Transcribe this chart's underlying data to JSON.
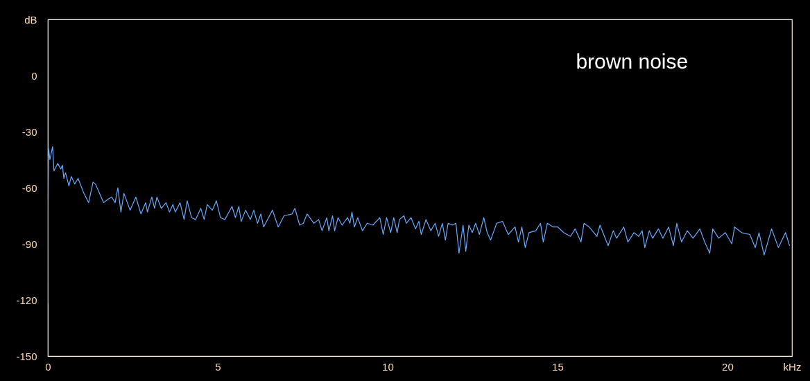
{
  "chart_data": {
    "type": "line",
    "x": [
      0,
      0.01,
      0.02,
      0.06,
      0.14,
      0.18,
      0.29,
      0.38,
      0.43,
      0.47,
      0.52,
      0.62,
      0.69,
      0.79,
      0.89,
      1.06,
      1.2,
      1.33,
      1.4,
      1.64,
      1.78,
      1.88,
      1.98,
      2.06,
      2.15,
      2.24,
      2.42,
      2.59,
      2.74,
      2.88,
      2.93,
      3.06,
      3.14,
      3.21,
      3.34,
      3.48,
      3.58,
      3.68,
      3.75,
      3.89,
      4.01,
      4.1,
      4.23,
      4.35,
      4.5,
      4.6,
      4.69,
      4.84,
      4.96,
      5.08,
      5.21,
      5.42,
      5.52,
      5.62,
      5.69,
      5.82,
      5.96,
      6.06,
      6.17,
      6.27,
      6.35,
      6.61,
      6.78,
      6.95,
      7.19,
      7.27,
      7.41,
      7.52,
      7.63,
      7.83,
      7.97,
      8.07,
      8.21,
      8.27,
      8.38,
      8.44,
      8.54,
      8.66,
      8.82,
      8.89,
      8.95,
      9.02,
      9.12,
      9.26,
      9.4,
      9.57,
      9.77,
      9.87,
      9.97,
      10.09,
      10.18,
      10.28,
      10.35,
      10.48,
      10.55,
      10.69,
      10.82,
      10.92,
      10.99,
      11.13,
      11.27,
      11.4,
      11.5,
      11.61,
      11.7,
      11.78,
      11.91,
      12.01,
      12.1,
      12.22,
      12.3,
      12.39,
      12.49,
      12.59,
      12.7,
      12.83,
      12.93,
      13.03,
      13.21,
      13.38,
      13.55,
      13.75,
      13.85,
      13.95,
      14.05,
      14.16,
      14.36,
      14.5,
      14.58,
      14.7,
      14.87,
      15.01,
      15.18,
      15.38,
      15.52,
      15.69,
      15.78,
      15.93,
      16.16,
      16.25,
      16.49,
      16.64,
      16.74,
      16.95,
      17.07,
      17.25,
      17.39,
      17.49,
      17.57,
      17.7,
      17.8,
      17.97,
      18.1,
      18.27,
      18.41,
      18.51,
      18.65,
      18.82,
      18.99,
      19.19,
      19.33,
      19.48,
      19.57,
      19.74,
      19.94,
      20.13,
      20.21,
      20.42,
      20.66,
      20.82,
      20.93,
      21.08,
      21.3,
      21.5,
      21.71,
      21.83
    ],
    "series": [
      {
        "color": "#6aaaff",
        "values": [
          -122,
          -67,
          -39,
          -45,
          -38,
          -51,
          -47,
          -50,
          -48,
          -55,
          -52,
          -59,
          -54,
          -58,
          -55,
          -63,
          -68,
          -57,
          -58,
          -68,
          -66,
          -65,
          -68,
          -60,
          -73,
          -63,
          -72,
          -65,
          -74,
          -68,
          -73,
          -65,
          -71,
          -65,
          -71,
          -68,
          -73,
          -69,
          -73,
          -68,
          -77,
          -67,
          -76,
          -77,
          -71,
          -77,
          -69,
          -72,
          -67,
          -76,
          -77,
          -70,
          -76,
          -70,
          -78,
          -72,
          -77,
          -72,
          -79,
          -74,
          -81,
          -72,
          -81,
          -75,
          -74,
          -71,
          -80,
          -79,
          -74,
          -79,
          -77,
          -83,
          -76,
          -83,
          -75,
          -83,
          -76,
          -80,
          -76,
          -79,
          -73,
          -81,
          -76,
          -83,
          -79,
          -80,
          -76,
          -85,
          -76,
          -84,
          -76,
          -84,
          -77,
          -75,
          -79,
          -76,
          -82,
          -78,
          -85,
          -77,
          -83,
          -79,
          -86,
          -79,
          -88,
          -79,
          -80,
          -79,
          -95,
          -80,
          -94,
          -80,
          -84,
          -79,
          -85,
          -76,
          -84,
          -88,
          -79,
          -78,
          -85,
          -81,
          -89,
          -81,
          -92,
          -84,
          -83,
          -79,
          -89,
          -79,
          -81,
          -81,
          -84,
          -86,
          -82,
          -89,
          -79,
          -81,
          -86,
          -80,
          -91,
          -83,
          -87,
          -81,
          -89,
          -84,
          -86,
          -83,
          -92,
          -83,
          -87,
          -82,
          -87,
          -81,
          -91,
          -79,
          -89,
          -83,
          -87,
          -82,
          -89,
          -95,
          -82,
          -87,
          -84,
          -90,
          -81,
          -84,
          -85,
          -92,
          -84,
          -96,
          -82,
          -92,
          -84,
          -91
        ]
      }
    ],
    "xlim": [
      0,
      21.9
    ],
    "ylim": [
      -150,
      30
    ],
    "xticks": [
      0,
      5,
      10,
      15,
      20,
      {
        "value": 21.9,
        "label": "kHz"
      }
    ],
    "yticks": [
      -150,
      -120,
      -90,
      -60,
      -30,
      0,
      {
        "value": 30,
        "label": "dB"
      }
    ],
    "grid": false,
    "annotations": [
      "brown noise"
    ]
  }
}
